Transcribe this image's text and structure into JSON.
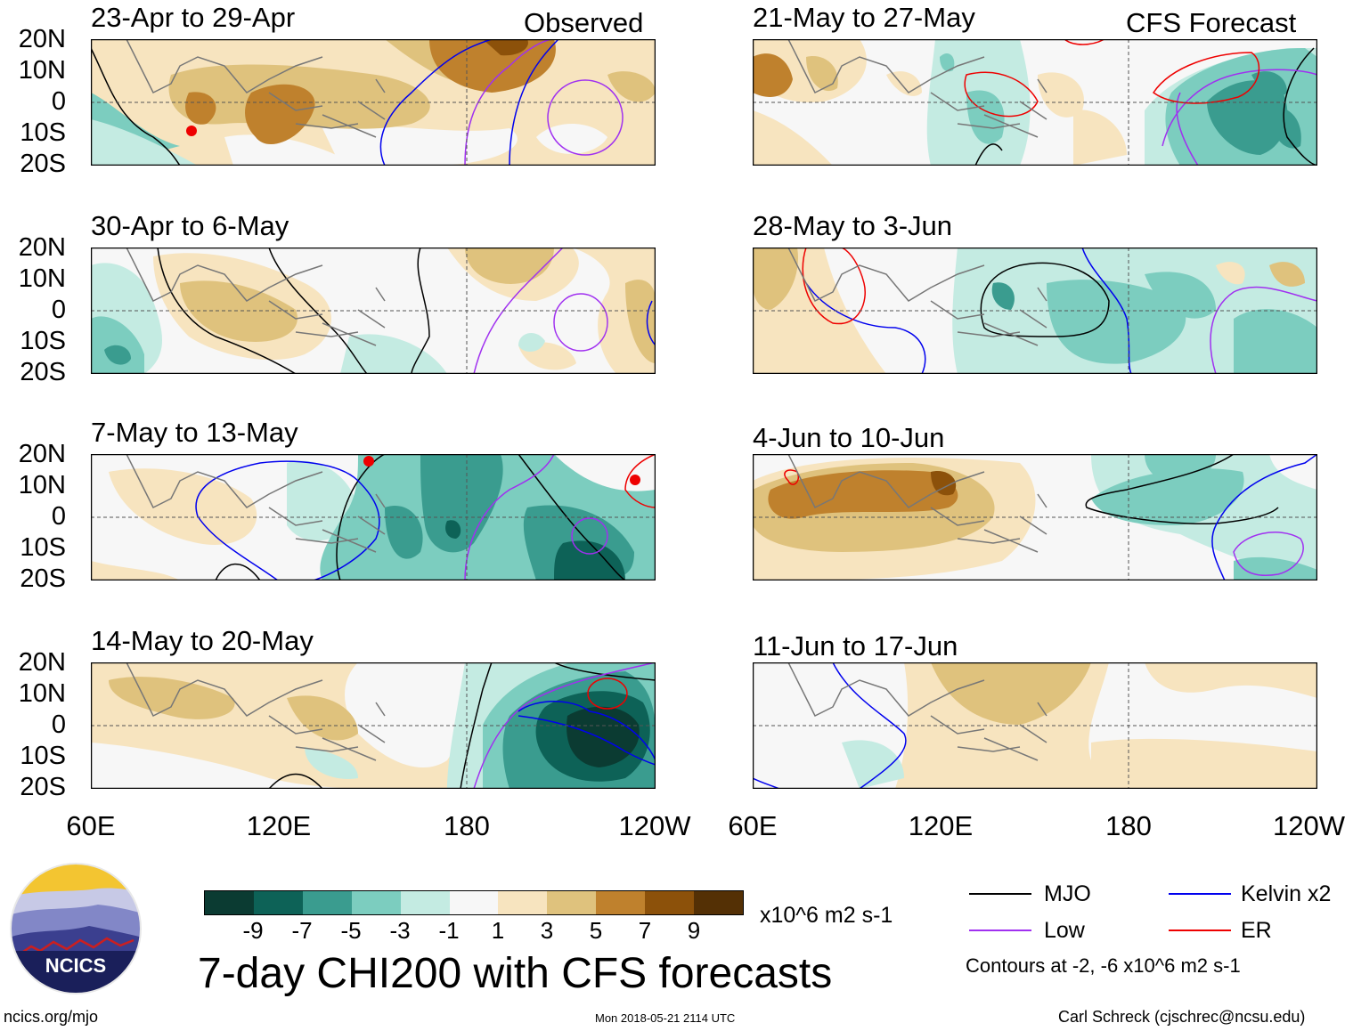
{
  "observed_label": "Observed",
  "forecast_label": "CFS Forecast",
  "lat_labels": [
    "20N",
    "10N",
    "0",
    "10S",
    "20S"
  ],
  "lon_labels": [
    "60E",
    "120E",
    "180",
    "120W"
  ],
  "panels": [
    {
      "title": "23-Apr to 29-Apr",
      "kind": "observed"
    },
    {
      "title": "30-Apr to 6-May",
      "kind": "observed"
    },
    {
      "title": "7-May to 13-May",
      "kind": "observed"
    },
    {
      "title": "14-May to 20-May",
      "kind": "observed"
    },
    {
      "title": "21-May to 27-May",
      "kind": "forecast"
    },
    {
      "title": "28-May to 3-Jun",
      "kind": "forecast"
    },
    {
      "title": "4-Jun to 10-Jun",
      "kind": "forecast"
    },
    {
      "title": "11-Jun to 17-Jun",
      "kind": "forecast"
    }
  ],
  "colorbar": {
    "colors": [
      "#0b3b32",
      "#0d6257",
      "#3a9c8f",
      "#7ccdbf",
      "#c4ebe2",
      "#f7f7f7",
      "#f7e4bf",
      "#dfc27d",
      "#bf812d",
      "#8c510a",
      "#543005"
    ],
    "ticks": [
      "-9",
      "-7",
      "-5",
      "-3",
      "-1",
      "1",
      "3",
      "5",
      "7",
      "9"
    ],
    "units": "x10^6 m2 s-1"
  },
  "main_title": "7-day CHI200 with CFS forecasts",
  "legend": {
    "items": [
      {
        "label": "MJO",
        "color": "#000000"
      },
      {
        "label": "Kelvin x2",
        "color": "#0000ee"
      },
      {
        "label": "Low",
        "color": "#a030f0"
      },
      {
        "label": "ER",
        "color": "#ee0000"
      }
    ],
    "contour_note": "Contours at -2, -6 x10^6 m2 s-1"
  },
  "logo_text": "NCICS",
  "footer": {
    "url": "ncics.org/mjo",
    "timestamp": "Mon 2018-05-21 2114 UTC",
    "credit": "Carl Schreck (cjschrec@ncsu.edu)"
  }
}
